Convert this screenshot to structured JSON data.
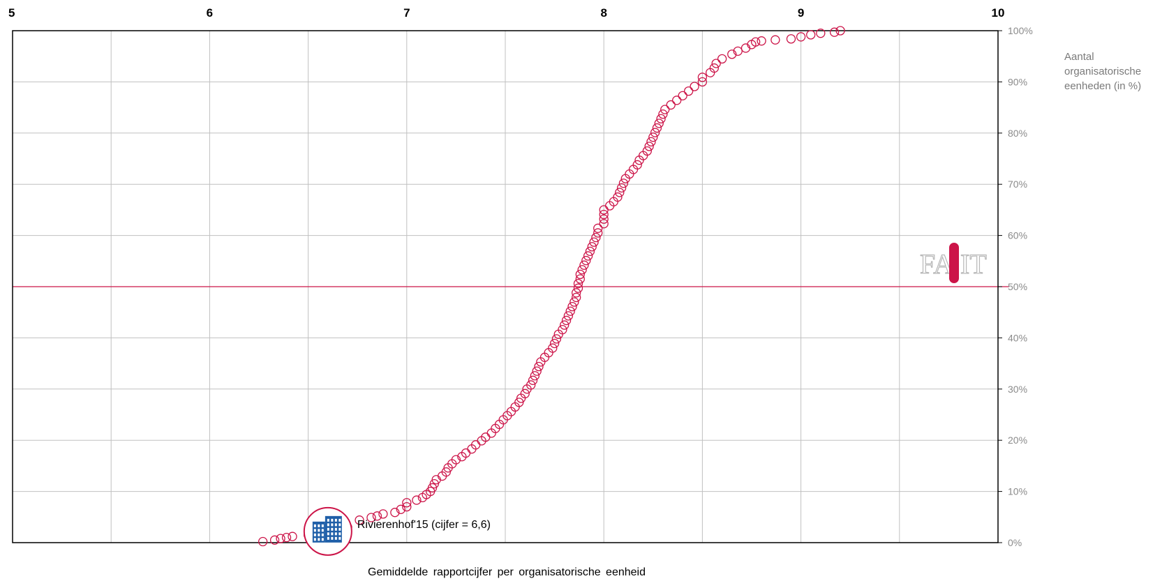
{
  "chart_data": {
    "type": "scatter",
    "xlabel": "Gemiddelde  rapportcijfer  per  organisatorische  eenheid",
    "ylabel_lines": [
      "Aantal",
      "organisatorische",
      "eenheden (in %)"
    ],
    "xlim": [
      5,
      10
    ],
    "ylim": [
      0,
      100
    ],
    "x_ticks": [
      "5",
      "6",
      "7",
      "8",
      "9",
      "10"
    ],
    "y_ticks": [
      "0%",
      "10%",
      "20%",
      "30%",
      "40%",
      "50%",
      "60%",
      "70%",
      "80%",
      "90%",
      "100%"
    ],
    "grid": true,
    "reference_line_y": 50,
    "series": [
      {
        "points": [
          [
            6.27,
            0.2
          ],
          [
            6.33,
            0.5
          ],
          [
            6.36,
            0.8
          ],
          [
            6.39,
            1.0
          ],
          [
            6.42,
            1.2
          ],
          [
            6.5,
            1.5
          ],
          [
            6.6,
            1.9
          ],
          [
            6.66,
            2.3
          ],
          [
            6.7,
            3.0
          ],
          [
            6.76,
            4.4
          ],
          [
            6.82,
            4.9
          ],
          [
            6.85,
            5.2
          ],
          [
            6.88,
            5.6
          ],
          [
            6.94,
            5.9
          ],
          [
            6.97,
            6.5
          ],
          [
            7.0,
            7.0
          ],
          [
            7.0,
            7.8
          ],
          [
            7.05,
            8.3
          ],
          [
            7.08,
            8.8
          ],
          [
            7.1,
            9.4
          ],
          [
            7.12,
            10.0
          ],
          [
            7.13,
            10.7
          ],
          [
            7.14,
            11.5
          ],
          [
            7.15,
            12.3
          ],
          [
            7.18,
            13.0
          ],
          [
            7.2,
            13.8
          ],
          [
            7.21,
            14.6
          ],
          [
            7.23,
            15.4
          ],
          [
            7.25,
            16.2
          ],
          [
            7.28,
            16.8
          ],
          [
            7.3,
            17.5
          ],
          [
            7.33,
            18.3
          ],
          [
            7.35,
            19.1
          ],
          [
            7.38,
            19.9
          ],
          [
            7.4,
            20.6
          ],
          [
            7.43,
            21.4
          ],
          [
            7.45,
            22.3
          ],
          [
            7.47,
            23.1
          ],
          [
            7.49,
            24.0
          ],
          [
            7.51,
            24.8
          ],
          [
            7.53,
            25.6
          ],
          [
            7.55,
            26.5
          ],
          [
            7.57,
            27.4
          ],
          [
            7.58,
            28.2
          ],
          [
            7.6,
            29.1
          ],
          [
            7.61,
            30.0
          ],
          [
            7.63,
            30.8
          ],
          [
            7.64,
            31.7
          ],
          [
            7.65,
            32.6
          ],
          [
            7.66,
            33.5
          ],
          [
            7.67,
            34.4
          ],
          [
            7.68,
            35.3
          ],
          [
            7.7,
            36.2
          ],
          [
            7.72,
            37.1
          ],
          [
            7.74,
            38.0
          ],
          [
            7.75,
            38.9
          ],
          [
            7.76,
            39.8
          ],
          [
            7.77,
            40.7
          ],
          [
            7.79,
            41.6
          ],
          [
            7.8,
            42.5
          ],
          [
            7.81,
            43.4
          ],
          [
            7.82,
            44.3
          ],
          [
            7.83,
            45.2
          ],
          [
            7.84,
            46.1
          ],
          [
            7.85,
            47.0
          ],
          [
            7.86,
            47.9
          ],
          [
            7.86,
            48.8
          ],
          [
            7.87,
            49.7
          ],
          [
            7.87,
            50.6
          ],
          [
            7.88,
            51.5
          ],
          [
            7.88,
            52.4
          ],
          [
            7.89,
            53.3
          ],
          [
            7.9,
            54.2
          ],
          [
            7.91,
            55.1
          ],
          [
            7.92,
            56.0
          ],
          [
            7.93,
            56.9
          ],
          [
            7.94,
            57.8
          ],
          [
            7.95,
            58.7
          ],
          [
            7.96,
            59.6
          ],
          [
            7.97,
            60.5
          ],
          [
            7.97,
            61.4
          ],
          [
            8.0,
            62.3
          ],
          [
            8.0,
            63.2
          ],
          [
            8.0,
            64.1
          ],
          [
            8.0,
            65.0
          ],
          [
            8.03,
            65.8
          ],
          [
            8.05,
            66.6
          ],
          [
            8.07,
            67.5
          ],
          [
            8.08,
            68.4
          ],
          [
            8.09,
            69.3
          ],
          [
            8.1,
            70.2
          ],
          [
            8.11,
            71.1
          ],
          [
            8.13,
            72.0
          ],
          [
            8.15,
            72.9
          ],
          [
            8.17,
            73.8
          ],
          [
            8.18,
            74.7
          ],
          [
            8.2,
            75.6
          ],
          [
            8.22,
            76.5
          ],
          [
            8.23,
            77.4
          ],
          [
            8.24,
            78.3
          ],
          [
            8.25,
            79.2
          ],
          [
            8.26,
            80.1
          ],
          [
            8.27,
            81.0
          ],
          [
            8.28,
            81.9
          ],
          [
            8.29,
            82.8
          ],
          [
            8.3,
            83.7
          ],
          [
            8.31,
            84.6
          ],
          [
            8.34,
            85.5
          ],
          [
            8.37,
            86.4
          ],
          [
            8.4,
            87.3
          ],
          [
            8.43,
            88.2
          ],
          [
            8.46,
            89.1
          ],
          [
            8.5,
            90.0
          ],
          [
            8.5,
            90.9
          ],
          [
            8.54,
            91.8
          ],
          [
            8.56,
            92.7
          ],
          [
            8.57,
            93.6
          ],
          [
            8.6,
            94.5
          ],
          [
            8.65,
            95.4
          ],
          [
            8.68,
            96.0
          ],
          [
            8.72,
            96.6
          ],
          [
            8.75,
            97.3
          ],
          [
            8.77,
            97.8
          ],
          [
            8.8,
            98.0
          ],
          [
            8.87,
            98.2
          ],
          [
            8.95,
            98.4
          ],
          [
            9.0,
            98.8
          ],
          [
            9.05,
            99.2
          ],
          [
            9.1,
            99.5
          ],
          [
            9.17,
            99.7
          ],
          [
            9.2,
            100.0
          ]
        ]
      }
    ],
    "highlight": {
      "x": 6.6,
      "y": 2.2,
      "label": "Rivierenhof'15 (cijfer = 6,6)",
      "icon": "building-icon"
    },
    "logo": {
      "icon": "facit-logo",
      "letters": "FACIT"
    },
    "colors": {
      "points": "#cc1448",
      "reference_line": "#cc1448",
      "grid": "#c0c0c0",
      "frame": "#000000",
      "icon_blue": "#1f5fa8"
    }
  }
}
